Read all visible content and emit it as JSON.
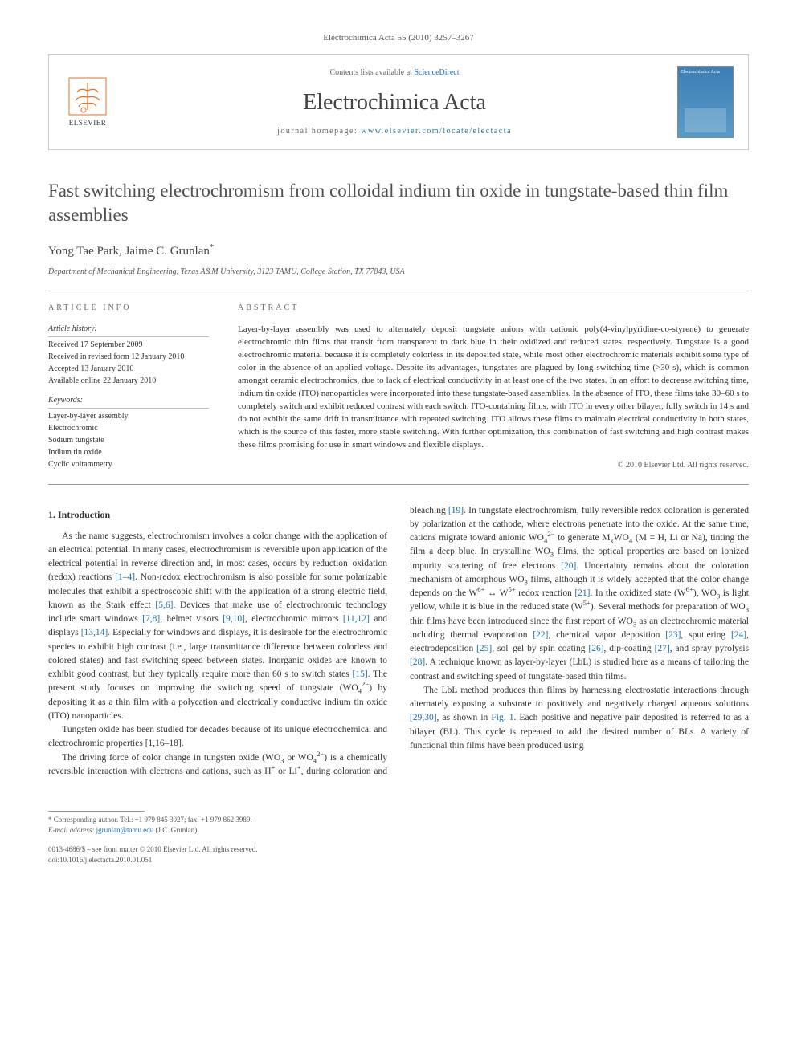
{
  "citation": "Electrochimica Acta 55 (2010) 3257–3267",
  "banner": {
    "contents_prefix": "Contents lists available at ",
    "contents_link": "ScienceDirect",
    "journal_name": "Electrochimica Acta",
    "homepage_prefix": "journal homepage: ",
    "homepage_url": "www.elsevier.com/locate/electacta",
    "publisher": "ELSEVIER",
    "cover_label": "Electrochimica Acta"
  },
  "title": "Fast switching electrochromism from colloidal indium tin oxide in tungstate-based thin film assemblies",
  "authors": "Yong Tae Park, Jaime C. Grunlan",
  "corr_marker": "*",
  "affiliation": "Department of Mechanical Engineering, Texas A&M University, 3123 TAMU, College Station, TX 77843, USA",
  "info": {
    "heading": "article info",
    "history_head": "Article history:",
    "history": "Received 17 September 2009\nReceived in revised form 12 January 2010\nAccepted 13 January 2010\nAvailable online 22 January 2010",
    "keywords_head": "Keywords:",
    "keywords": "Layer-by-layer assembly\nElectrochromic\nSodium tungstate\nIndium tin oxide\nCyclic voltammetry"
  },
  "abstract": {
    "heading": "abstract",
    "text": "Layer-by-layer assembly was used to alternately deposit tungstate anions with cationic poly(4-vinylpyridine-co-styrene) to generate electrochromic thin films that transit from transparent to dark blue in their oxidized and reduced states, respectively. Tungstate is a good electrochromic material because it is completely colorless in its deposited state, while most other electrochromic materials exhibit some type of color in the absence of an applied voltage. Despite its advantages, tungstates are plagued by long switching time (>30 s), which is common amongst ceramic electrochromics, due to lack of electrical conductivity in at least one of the two states. In an effort to decrease switching time, indium tin oxide (ITO) nanoparticles were incorporated into these tungstate-based assemblies. In the absence of ITO, these films take 30–60 s to completely switch and exhibit reduced contrast with each switch. ITO-containing films, with ITO in every other bilayer, fully switch in 14 s and do not exhibit the same drift in transmittance with repeated switching. ITO allows these films to maintain electrical conductivity in both states, which is the source of this faster, more stable switching. With further optimization, this combination of fast switching and high contrast makes these films promising for use in smart windows and flexible displays.",
    "copyright": "© 2010 Elsevier Ltd. All rights reserved."
  },
  "body": {
    "section_num": "1.",
    "section_title": "Introduction",
    "p1": "As the name suggests, electrochromism involves a color change with the application of an electrical potential. In many cases, electrochromism is reversible upon application of the electrical potential in reverse direction and, in most cases, occurs by reduction–oxidation (redox) reactions [1–4]. Non-redox electrochromism is also possible for some polarizable molecules that exhibit a spectroscopic shift with the application of a strong electric field, known as the Stark effect [5,6]. Devices that make use of electrochromic technology include smart windows [7,8], helmet visors [9,10], electrochromic mirrors [11,12] and displays [13,14]. Especially for windows and displays, it is desirable for the electrochromic species to exhibit high contrast (i.e., large transmittance difference between colorless and colored states) and fast switching speed between states. Inorganic oxides are known to exhibit good contrast, but they typically require more than 60 s to switch states [15]. The present study focuses on improving the switching speed of tungstate (WO₄²⁻) by depositing it as a thin film with a polycation and electrically conductive indium tin oxide (ITO) nanoparticles.",
    "p2": "Tungsten oxide has been studied for decades because of its unique electrochemical and electrochromic properties [1,16–18].",
    "p3": "The driving force of color change in tungsten oxide (WO₃ or WO₄²⁻) is a chemically reversible interaction with electrons and cations, such as H⁺ or Li⁺, during coloration and bleaching [19]. In tungstate electrochromism, fully reversible redox coloration is generated by polarization at the cathode, where electrons penetrate into the oxide. At the same time, cations migrate toward anionic WO₄²⁻ to generate MₓWO₄ (M = H, Li or Na), tinting the film a deep blue. In crystalline WO₃ films, the optical properties are based on ionized impurity scattering of free electrons [20]. Uncertainty remains about the coloration mechanism of amorphous WO₃ films, although it is widely accepted that the color change depends on the W⁶⁺ ↔ W⁵⁺ redox reaction [21]. In the oxidized state (W⁶⁺), WO₃ is light yellow, while it is blue in the reduced state (W⁵⁺). Several methods for preparation of WO₃ thin films have been introduced since the first report of WO₃ as an electrochromic material including thermal evaporation [22], chemical vapor deposition [23], sputtering [24], electrodeposition [25], sol–gel by spin coating [26], dip-coating [27], and spray pyrolysis [28]. A technique known as layer-by-layer (LbL) is studied here as a means of tailoring the contrast and switching speed of tungstate-based thin films.",
    "p4": "The LbL method produces thin films by harnessing electrostatic interactions through alternately exposing a substrate to positively and negatively charged aqueous solutions [29,30], as shown in Fig. 1. Each positive and negative pair deposited is referred to as a bilayer (BL). This cycle is repeated to add the desired number of BLs. A variety of functional thin films have been produced using"
  },
  "footer": {
    "corr_label": "* Corresponding author. Tel.: +1 979 845 3027; fax: +1 979 862 3989.",
    "email_label": "E-mail address:",
    "email": "jgrunlan@tamu.edu",
    "email_note": "(J.C. Grunlan).",
    "issn": "0013-4686/$ – see front matter © 2010 Elsevier Ltd. All rights reserved.",
    "doi": "doi:10.1016/j.electacta.2010.01.051"
  },
  "colors": {
    "link": "#1a6faf",
    "accent": "#e9711c",
    "text": "#333333",
    "rule": "#999999"
  }
}
